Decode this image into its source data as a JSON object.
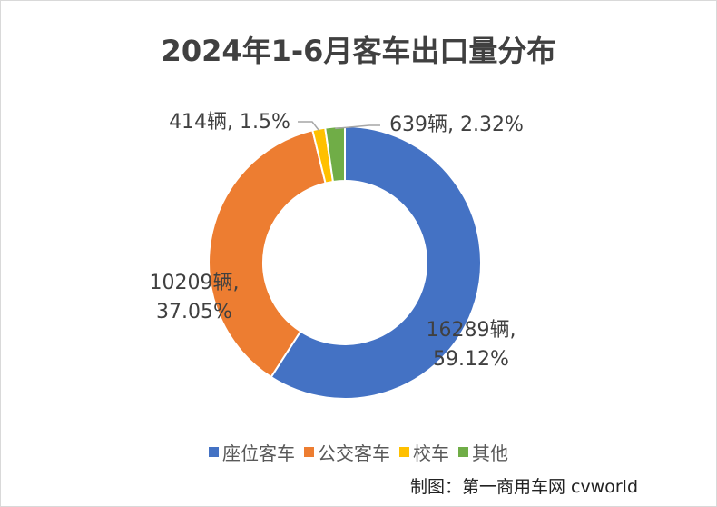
{
  "chart_data": {
    "type": "pie",
    "donut": true,
    "title": "2024年1-6月客车出口量分布",
    "categories": [
      "座位客车",
      "公交客车",
      "校车",
      "其他"
    ],
    "values": [
      16289,
      10209,
      414,
      639
    ],
    "percents": [
      59.12,
      37.05,
      1.5,
      2.32
    ],
    "data_labels": [
      [
        "16289辆,",
        "59.12%"
      ],
      [
        "10209辆,",
        "37.05%"
      ],
      [
        "414辆, 1.5%"
      ],
      [
        "639辆, 2.32%"
      ]
    ],
    "colors": [
      "#4472C4",
      "#ED7D31",
      "#FFC000",
      "#70AD47"
    ],
    "legend_position": "bottom"
  },
  "credit": "制图：第一商用车网 cvworld"
}
